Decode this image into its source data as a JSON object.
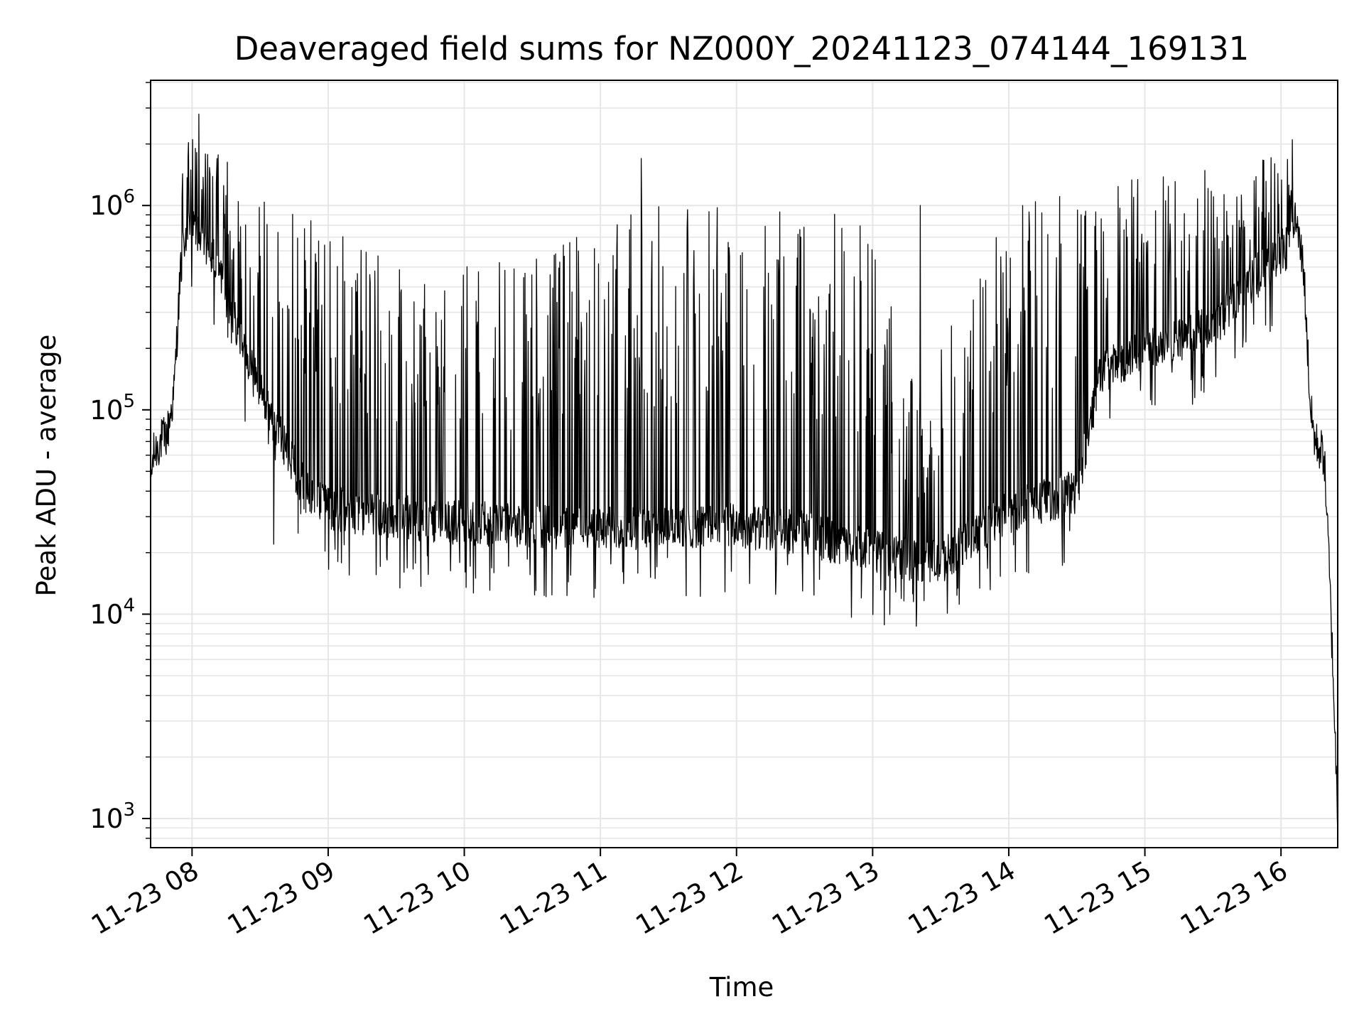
{
  "chart_data": {
    "type": "line",
    "title": "Deaveraged field sums for NZ000Y_20241123_074144_169131",
    "xlabel": "Time",
    "ylabel": "Peak ADU - average",
    "x_range": [
      "2024-11-23T07:41:44",
      "2024-11-23T16:25:00"
    ],
    "ylim": [
      720,
      4100000
    ],
    "yscale": "log",
    "grid": true,
    "line_color": "#000000",
    "grid_color": "#e6e6e6",
    "x_ticks": [
      {
        "value": "2024-11-23T08:00",
        "label": "11-23 08"
      },
      {
        "value": "2024-11-23T09:00",
        "label": "11-23 09"
      },
      {
        "value": "2024-11-23T10:00",
        "label": "11-23 10"
      },
      {
        "value": "2024-11-23T11:00",
        "label": "11-23 11"
      },
      {
        "value": "2024-11-23T12:00",
        "label": "11-23 12"
      },
      {
        "value": "2024-11-23T13:00",
        "label": "11-23 13"
      },
      {
        "value": "2024-11-23T14:00",
        "label": "11-23 14"
      },
      {
        "value": "2024-11-23T15:00",
        "label": "11-23 15"
      },
      {
        "value": "2024-11-23T16:00",
        "label": "11-23 16"
      }
    ],
    "y_ticks": [
      {
        "value": 1000,
        "base": "10",
        "exp": "3"
      },
      {
        "value": 10000,
        "base": "10",
        "exp": "4"
      },
      {
        "value": 100000,
        "base": "10",
        "exp": "5"
      },
      {
        "value": 1000000,
        "base": "10",
        "exp": "6"
      }
    ],
    "series": [
      {
        "baseline_profile": [
          [
            "2024-11-23T07:41:44",
            45000
          ],
          [
            "2024-11-23T07:43",
            60000
          ],
          [
            "2024-11-23T07:46",
            70000
          ],
          [
            "2024-11-23T07:49",
            75000
          ],
          [
            "2024-11-23T07:52",
            120000
          ],
          [
            "2024-11-23T07:55",
            500000
          ],
          [
            "2024-11-23T07:58",
            800000
          ],
          [
            "2024-11-23T08:03",
            750000
          ],
          [
            "2024-11-23T08:10",
            550000
          ],
          [
            "2024-11-23T08:20",
            250000
          ],
          [
            "2024-11-23T08:30",
            120000
          ],
          [
            "2024-11-23T08:40",
            70000
          ],
          [
            "2024-11-23T08:50",
            40000
          ],
          [
            "2024-11-23T09:00",
            33000
          ],
          [
            "2024-11-23T09:30",
            30000
          ],
          [
            "2024-11-23T10:00",
            28000
          ],
          [
            "2024-11-23T10:30",
            27000
          ],
          [
            "2024-11-23T11:00",
            26000
          ],
          [
            "2024-11-23T11:30",
            27000
          ],
          [
            "2024-11-23T12:00",
            27000
          ],
          [
            "2024-11-23T12:30",
            25000
          ],
          [
            "2024-11-23T13:00",
            20000
          ],
          [
            "2024-11-23T13:30",
            18000
          ],
          [
            "2024-11-23T13:45",
            25000
          ],
          [
            "2024-11-23T14:00",
            32000
          ],
          [
            "2024-11-23T14:30",
            40000
          ],
          [
            "2024-11-23T14:40",
            150000
          ],
          [
            "2024-11-23T15:00",
            200000
          ],
          [
            "2024-11-23T15:30",
            250000
          ],
          [
            "2024-11-23T15:40",
            350000
          ],
          [
            "2024-11-23T16:00",
            600000
          ],
          [
            "2024-11-23T16:06",
            900000
          ],
          [
            "2024-11-23T16:10",
            500000
          ],
          [
            "2024-11-23T16:13",
            100000
          ],
          [
            "2024-11-23T16:15",
            70000
          ],
          [
            "2024-11-23T16:19",
            60000
          ],
          [
            "2024-11-23T16:21",
            20000
          ],
          [
            "2024-11-23T16:23",
            5000
          ],
          [
            "2024-11-23T16:25",
            1000
          ]
        ],
        "spike_envelope": [
          [
            "2024-11-23T07:55",
            2000000
          ],
          [
            "2024-11-23T08:05",
            2500000
          ],
          [
            "2024-11-23T08:20",
            1400000
          ],
          [
            "2024-11-23T08:40",
            1000000
          ],
          [
            "2024-11-23T09:00",
            800000
          ],
          [
            "2024-11-23T09:30",
            500000
          ],
          [
            "2024-11-23T10:00",
            500000
          ],
          [
            "2024-11-23T10:30",
            600000
          ],
          [
            "2024-11-23T11:00",
            800000
          ],
          [
            "2024-11-23T11:30",
            1100000
          ],
          [
            "2024-11-23T12:00",
            1000000
          ],
          [
            "2024-11-23T12:30",
            1000000
          ],
          [
            "2024-11-23T13:00",
            800000
          ],
          [
            "2024-11-23T13:20",
            120000
          ],
          [
            "2024-11-23T13:40",
            400000
          ],
          [
            "2024-11-23T14:00",
            1000000
          ],
          [
            "2024-11-23T14:30",
            1200000
          ],
          [
            "2024-11-23T15:00",
            1400000
          ],
          [
            "2024-11-23T15:30",
            1500000
          ],
          [
            "2024-11-23T16:00",
            1800000
          ],
          [
            "2024-11-23T16:06",
            2000000
          ]
        ],
        "notable_peaks": [
          [
            "2024-11-23T08:03",
            2800000
          ],
          [
            "2024-11-23T08:11",
            1700000
          ],
          [
            "2024-11-23T11:18",
            1700000
          ],
          [
            "2024-11-23T16:05",
            2100000
          ],
          [
            "2024-11-23T13:21",
            1000000
          ]
        ],
        "notable_dips": [
          [
            "2024-11-23T12:55",
            12000
          ],
          [
            "2024-11-23T13:18",
            11500
          ],
          [
            "2024-11-23T08:36",
            22000
          ],
          [
            "2024-11-23T10:05",
            15000
          ]
        ]
      }
    ]
  }
}
